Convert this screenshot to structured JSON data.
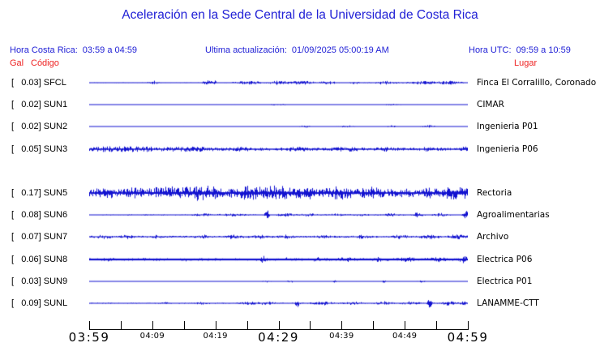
{
  "title": "Aceleración en la Sede Central de la Universidad de Costa Rica",
  "header": {
    "hora_cr_label": "Hora Costa Rica:",
    "hora_cr_value": "03:59 a 04:59",
    "update_label": "Ultima actualización:",
    "update_value": "01/09/2025 05:00:19 AM",
    "hora_utc_label": "Hora UTC:",
    "hora_utc_value": "09:59 a 10:59"
  },
  "columns": {
    "gal": "Gal",
    "codigo": "Código",
    "lugar": "Lugar"
  },
  "colors": {
    "text_blue": "#2121d6",
    "text_red": "#ee2222",
    "trace_blue": "#1212d0",
    "axis_black": "#000000"
  },
  "axis": {
    "tick_count": 13,
    "labels": [
      {
        "text": "03:59",
        "tick": 0,
        "size": "large"
      },
      {
        "text": "04:09",
        "tick": 2,
        "size": "small"
      },
      {
        "text": "04:19",
        "tick": 4,
        "size": "small"
      },
      {
        "text": "04:29",
        "tick": 6,
        "size": "large"
      },
      {
        "text": "04:39",
        "tick": 8,
        "size": "small"
      },
      {
        "text": "04:49",
        "tick": 10,
        "size": "small"
      },
      {
        "text": "04:59",
        "tick": 12,
        "size": "large"
      }
    ]
  },
  "stations": [
    {
      "gal": "[   0.03]",
      "code": "SFCL",
      "place": "Finca El Corralillo, Coronado",
      "slot": 0,
      "base": 0.35,
      "thick": 1,
      "bursts": [
        [
          0.17,
          0.012,
          1.1
        ],
        [
          0.31,
          0.01,
          1.6
        ],
        [
          0.33,
          0.008,
          1.4
        ],
        [
          0.42,
          0.03,
          1.1
        ],
        [
          0.5,
          0.02,
          1.2
        ],
        [
          0.56,
          0.04,
          1.1
        ],
        [
          0.63,
          0.02,
          1.0
        ],
        [
          0.7,
          0.01,
          0.9
        ],
        [
          0.78,
          0.03,
          1.0
        ],
        [
          0.88,
          0.03,
          1.0
        ],
        [
          0.95,
          0.03,
          1.1
        ]
      ]
    },
    {
      "gal": "[   0.02]",
      "code": "SUN1",
      "place": "CIMAR",
      "slot": 1,
      "base": 0.3,
      "thick": 1,
      "bursts": [
        [
          0.5,
          0.02,
          0.3
        ],
        [
          0.8,
          0.02,
          0.3
        ]
      ]
    },
    {
      "gal": "[   0.02]",
      "code": "SUN2",
      "place": "Ingenieria P01",
      "slot": 2,
      "base": 0.3,
      "thick": 1,
      "bursts": [
        [
          0.57,
          0.01,
          0.7
        ],
        [
          0.68,
          0.015,
          0.7
        ],
        [
          0.8,
          0.01,
          0.6
        ],
        [
          0.9,
          0.015,
          0.7
        ]
      ]
    },
    {
      "gal": "[   0.05]",
      "code": "SUN3",
      "place": "Ingenieria P06",
      "slot": 3,
      "base": 1.0,
      "thick": 1.4,
      "bursts": [
        [
          0.05,
          0.06,
          0.9
        ],
        [
          0.15,
          0.08,
          0.9
        ],
        [
          0.28,
          0.05,
          0.8
        ],
        [
          0.4,
          0.03,
          0.7
        ],
        [
          0.55,
          0.03,
          0.7
        ],
        [
          0.68,
          0.03,
          0.8
        ],
        [
          0.78,
          0.02,
          0.8
        ],
        [
          0.9,
          0.02,
          0.9
        ],
        [
          0.99,
          0.01,
          1.2
        ]
      ]
    },
    {
      "gal": "[   0.17]",
      "code": "SUN5",
      "place": "Rectoria",
      "slot": 5,
      "base": 2.0,
      "thick": 1.6,
      "bursts": [
        [
          0.04,
          0.03,
          2.5
        ],
        [
          0.12,
          0.03,
          2.0
        ],
        [
          0.2,
          0.04,
          3.0
        ],
        [
          0.3,
          0.05,
          4.0
        ],
        [
          0.42,
          0.04,
          3.0
        ],
        [
          0.5,
          0.04,
          3.5
        ],
        [
          0.58,
          0.03,
          2.5
        ],
        [
          0.66,
          0.04,
          3.0
        ],
        [
          0.75,
          0.03,
          2.5
        ],
        [
          0.83,
          0.03,
          2.0
        ],
        [
          0.9,
          0.02,
          2.0
        ],
        [
          0.97,
          0.03,
          4.0
        ]
      ]
    },
    {
      "gal": "[   0.08]",
      "code": "SUN6",
      "place": "Agroalimentarias",
      "slot": 6,
      "base": 0.45,
      "thick": 1,
      "bursts": [
        [
          0.3,
          0.02,
          0.6
        ],
        [
          0.38,
          0.03,
          0.7
        ],
        [
          0.47,
          0.006,
          3.2
        ],
        [
          0.52,
          0.02,
          0.9
        ],
        [
          0.58,
          0.02,
          0.7
        ],
        [
          0.65,
          0.02,
          0.7
        ],
        [
          0.72,
          0.015,
          0.7
        ],
        [
          0.8,
          0.02,
          0.8
        ],
        [
          0.87,
          0.01,
          2.2
        ],
        [
          0.93,
          0.015,
          0.9
        ],
        [
          0.995,
          0.006,
          3.0
        ]
      ]
    },
    {
      "gal": "[   0.07]",
      "code": "SUN7",
      "place": "Archivo",
      "slot": 7,
      "base": 0.65,
      "thick": 1,
      "bursts": [
        [
          0.04,
          0.02,
          0.9
        ],
        [
          0.1,
          0.015,
          1.1
        ],
        [
          0.18,
          0.01,
          0.8
        ],
        [
          0.3,
          0.015,
          0.9
        ],
        [
          0.38,
          0.02,
          1.0
        ],
        [
          0.45,
          0.02,
          1.0
        ],
        [
          0.52,
          0.015,
          0.9
        ],
        [
          0.62,
          0.015,
          0.8
        ],
        [
          0.72,
          0.015,
          0.9
        ],
        [
          0.82,
          0.02,
          1.0
        ],
        [
          0.9,
          0.02,
          1.1
        ],
        [
          0.97,
          0.02,
          1.3
        ]
      ]
    },
    {
      "gal": "[   0.06]",
      "code": "SUN8",
      "place": "Electrica P06",
      "slot": 8,
      "base": 0.9,
      "thick": 2.2,
      "bursts": [
        [
          0.05,
          0.01,
          0.5
        ],
        [
          0.15,
          0.01,
          0.5
        ],
        [
          0.25,
          0.01,
          0.6
        ],
        [
          0.46,
          0.006,
          1.8
        ],
        [
          0.52,
          0.01,
          0.8
        ],
        [
          0.6,
          0.02,
          0.8
        ],
        [
          0.68,
          0.02,
          0.9
        ],
        [
          0.76,
          0.02,
          0.9
        ],
        [
          0.84,
          0.02,
          1.0
        ],
        [
          0.92,
          0.02,
          1.1
        ],
        [
          0.99,
          0.01,
          1.8
        ]
      ]
    },
    {
      "gal": "[   0.03]",
      "code": "SUN9",
      "place": "Electrica P01",
      "slot": 9,
      "base": 0.3,
      "thick": 1,
      "bursts": [
        [
          0.47,
          0.008,
          0.9
        ],
        [
          0.53,
          0.008,
          1.0
        ],
        [
          0.65,
          0.008,
          0.6
        ],
        [
          0.78,
          0.008,
          0.6
        ],
        [
          0.88,
          0.008,
          0.6
        ]
      ]
    },
    {
      "gal": "[   0.09]",
      "code": "SUNL",
      "place": "LANAMME-CTT",
      "slot": 10,
      "base": 0.45,
      "thick": 1,
      "bursts": [
        [
          0.2,
          0.01,
          0.5
        ],
        [
          0.3,
          0.015,
          0.6
        ],
        [
          0.42,
          0.02,
          0.9
        ],
        [
          0.47,
          0.02,
          1.0
        ],
        [
          0.55,
          0.006,
          2.6
        ],
        [
          0.62,
          0.025,
          1.0
        ],
        [
          0.7,
          0.02,
          0.9
        ],
        [
          0.78,
          0.02,
          1.0
        ],
        [
          0.85,
          0.02,
          1.0
        ],
        [
          0.9,
          0.006,
          2.8
        ],
        [
          0.95,
          0.015,
          1.2
        ],
        [
          0.99,
          0.01,
          1.0
        ]
      ]
    }
  ],
  "chart_data": {
    "type": "line",
    "title": "Aceleración en la Sede Central de la Universidad de Costa Rica",
    "xlabel": "Hora Costa Rica",
    "ylabel": "Gal",
    "x_range": [
      "03:59",
      "04:59"
    ],
    "x_ticks": [
      "03:59",
      "04:09",
      "04:19",
      "04:29",
      "04:39",
      "04:49",
      "04:59"
    ],
    "grid": false,
    "legend_position": "none",
    "series": [
      {
        "name": "SFCL",
        "peak_gal": 0.03,
        "place": "Finca El Corralillo, Coronado"
      },
      {
        "name": "SUN1",
        "peak_gal": 0.02,
        "place": "CIMAR"
      },
      {
        "name": "SUN2",
        "peak_gal": 0.02,
        "place": "Ingenieria P01"
      },
      {
        "name": "SUN3",
        "peak_gal": 0.05,
        "place": "Ingenieria P06"
      },
      {
        "name": "SUN5",
        "peak_gal": 0.17,
        "place": "Rectoria"
      },
      {
        "name": "SUN6",
        "peak_gal": 0.08,
        "place": "Agroalimentarias"
      },
      {
        "name": "SUN7",
        "peak_gal": 0.07,
        "place": "Archivo"
      },
      {
        "name": "SUN8",
        "peak_gal": 0.06,
        "place": "Electrica P06"
      },
      {
        "name": "SUN9",
        "peak_gal": 0.03,
        "place": "Electrica P01"
      },
      {
        "name": "SUNL",
        "peak_gal": 0.09,
        "place": "LANAMME-CTT"
      }
    ]
  }
}
